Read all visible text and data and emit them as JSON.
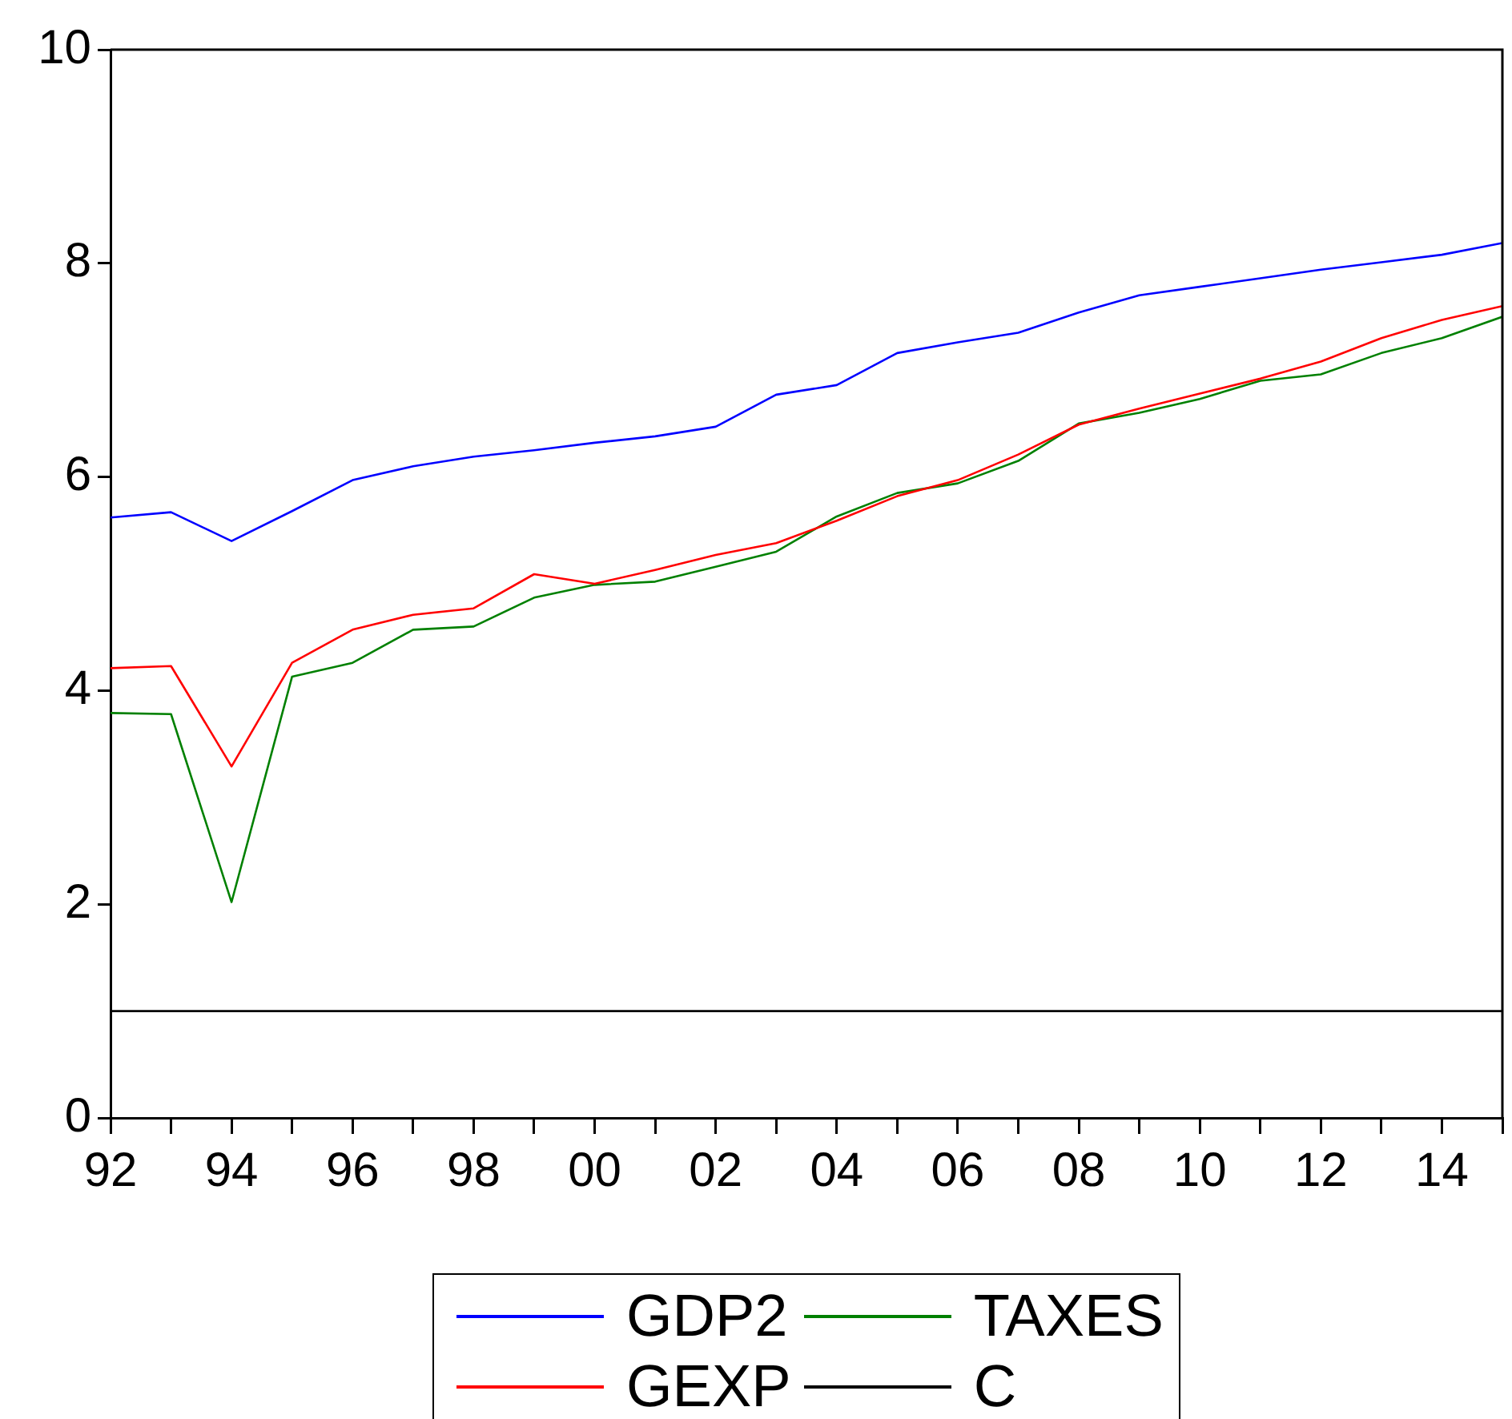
{
  "chart_data": {
    "type": "line",
    "x": [
      1992,
      1993,
      1994,
      1995,
      1996,
      1997,
      1998,
      1999,
      2000,
      2001,
      2002,
      2003,
      2004,
      2005,
      2006,
      2007,
      2008,
      2009,
      2010,
      2011,
      2012,
      2013,
      2014,
      2015
    ],
    "series": [
      {
        "name": "GDP2",
        "color": "#0000ff",
        "values": [
          5.62,
          5.67,
          5.4,
          5.68,
          5.97,
          6.1,
          6.19,
          6.25,
          6.32,
          6.38,
          6.47,
          6.77,
          6.86,
          7.16,
          7.26,
          7.35,
          7.54,
          7.7,
          7.78,
          7.86,
          7.94,
          8.01,
          8.08,
          8.19
        ]
      },
      {
        "name": "GEXP",
        "color": "#ff0000",
        "values": [
          4.21,
          4.23,
          3.29,
          4.26,
          4.57,
          4.71,
          4.77,
          5.09,
          5.0,
          5.13,
          5.27,
          5.38,
          5.59,
          5.82,
          5.97,
          6.21,
          6.49,
          6.64,
          6.78,
          6.92,
          7.08,
          7.3,
          7.47,
          7.6
        ]
      },
      {
        "name": "TAXES",
        "color": "#008000",
        "values": [
          3.79,
          3.78,
          2.02,
          4.13,
          4.26,
          4.57,
          4.6,
          4.87,
          4.99,
          5.02,
          5.16,
          5.3,
          5.63,
          5.85,
          5.94,
          6.15,
          6.5,
          6.6,
          6.73,
          6.9,
          6.96,
          7.16,
          7.3,
          7.5
        ]
      },
      {
        "name": "C",
        "color": "#000000",
        "values": [
          1,
          1,
          1,
          1,
          1,
          1,
          1,
          1,
          1,
          1,
          1,
          1,
          1,
          1,
          1,
          1,
          1,
          1,
          1,
          1,
          1,
          1,
          1,
          1
        ]
      }
    ],
    "xlim": [
      1992,
      2015
    ],
    "xticks": [
      {
        "value": 1992,
        "label": "92"
      },
      {
        "value": 1993,
        "label": null
      },
      {
        "value": 1994,
        "label": "94"
      },
      {
        "value": 1995,
        "label": null
      },
      {
        "value": 1996,
        "label": "96"
      },
      {
        "value": 1997,
        "label": null
      },
      {
        "value": 1998,
        "label": "98"
      },
      {
        "value": 1999,
        "label": null
      },
      {
        "value": 2000,
        "label": "00"
      },
      {
        "value": 2001,
        "label": null
      },
      {
        "value": 2002,
        "label": "02"
      },
      {
        "value": 2003,
        "label": null
      },
      {
        "value": 2004,
        "label": "04"
      },
      {
        "value": 2005,
        "label": null
      },
      {
        "value": 2006,
        "label": "06"
      },
      {
        "value": 2007,
        "label": null
      },
      {
        "value": 2008,
        "label": "08"
      },
      {
        "value": 2009,
        "label": null
      },
      {
        "value": 2010,
        "label": "10"
      },
      {
        "value": 2011,
        "label": null
      },
      {
        "value": 2012,
        "label": "12"
      },
      {
        "value": 2013,
        "label": null
      },
      {
        "value": 2014,
        "label": "14"
      },
      {
        "value": 2015,
        "label": null
      }
    ],
    "ylim": [
      0,
      10
    ],
    "yticks": [
      0,
      2,
      4,
      6,
      8,
      10
    ],
    "grid": false,
    "legend": "bottom",
    "marker": "none",
    "line_style": "solid"
  }
}
